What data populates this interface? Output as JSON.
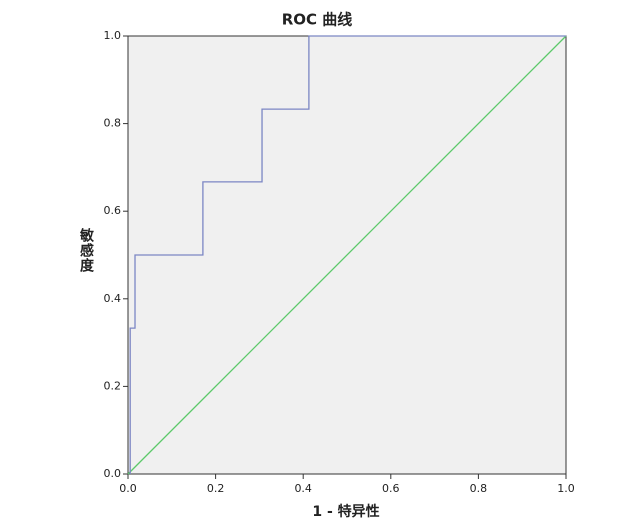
{
  "chart_data": {
    "type": "line",
    "title": "ROC 曲线",
    "x_label": "1 - 特异性",
    "y_label": "敏感度",
    "x": [
      0.005,
      0.005,
      0.016,
      0.016,
      0.171,
      0.171,
      0.306,
      0.306,
      0.413,
      0.413,
      1.0
    ],
    "series": [
      {
        "color": "#7b86c4",
        "values": [
          0,
          0.333,
          0.333,
          0.5,
          0.5,
          0.667,
          0.667,
          0.833,
          0.833,
          1.0,
          1.0
        ]
      }
    ],
    "reference_line": {
      "x": [
        0,
        1
      ],
      "values": [
        0,
        1
      ],
      "color": "#5cc96a"
    },
    "xlim": [
      0,
      1
    ],
    "ylim": [
      0,
      1
    ],
    "xticks": [
      {
        "value": 0,
        "label": "0.0"
      },
      {
        "value": 0.2,
        "label": "0.2"
      },
      {
        "value": 0.4,
        "label": "0.4"
      },
      {
        "value": 0.6,
        "label": "0.6"
      },
      {
        "value": 0.8,
        "label": "0.8"
      },
      {
        "value": 1,
        "label": "1.0"
      }
    ],
    "yticks": [
      {
        "value": 0,
        "label": "0.0"
      },
      {
        "value": 0.2,
        "label": "0.2"
      },
      {
        "value": 0.4,
        "label": "0.4"
      },
      {
        "value": 0.6,
        "label": "0.6"
      },
      {
        "value": 0.8,
        "label": "0.8"
      },
      {
        "value": 1,
        "label": "1.0"
      }
    ]
  }
}
